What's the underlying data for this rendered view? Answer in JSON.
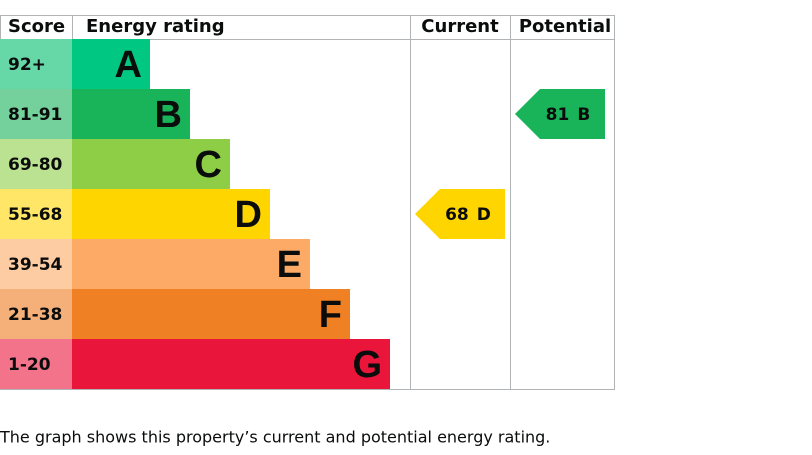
{
  "header": {
    "score": "Score",
    "energy_rating": "Energy rating",
    "current": "Current",
    "potential": "Potential"
  },
  "bands": [
    {
      "score": "92+",
      "letter": "A",
      "color": "#00c781",
      "score_color": "#66d8a8"
    },
    {
      "score": "81-91",
      "letter": "B",
      "color": "#19b459",
      "score_color": "#75d19b"
    },
    {
      "score": "69-80",
      "letter": "C",
      "color": "#8dce46",
      "score_color": "#bbe290"
    },
    {
      "score": "55-68",
      "letter": "D",
      "color": "#ffd500",
      "score_color": "#ffe666"
    },
    {
      "score": "39-54",
      "letter": "E",
      "color": "#fcaa65",
      "score_color": "#fdcca3"
    },
    {
      "score": "21-38",
      "letter": "F",
      "color": "#ef8023",
      "score_color": "#f5b07a"
    },
    {
      "score": "1-20",
      "letter": "G",
      "color": "#e9153b",
      "score_color": "#f2738a"
    }
  ],
  "current": {
    "score": "68",
    "band": "D"
  },
  "potential": {
    "score": "81",
    "band": "B"
  },
  "caption": "The graph shows this property’s current and potential energy rating."
}
